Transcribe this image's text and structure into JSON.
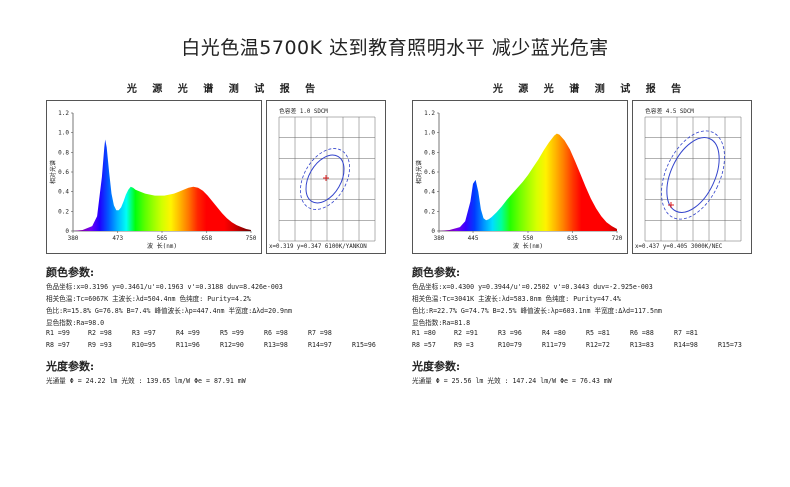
{
  "headline": "白光色温5700K  达到教育照明水平  减少蓝光危害",
  "reports": [
    {
      "title": "光 源 光 谱 测 试 报 告",
      "ylabel": "相对光谱",
      "xlabel": "波 长(nm)",
      "y_ticks": [
        "1.2",
        "1.0",
        "0.8",
        "0.6",
        "0.4",
        "0.2",
        "0"
      ],
      "x_ticks": [
        "380",
        "473",
        "565",
        "658",
        "750"
      ],
      "cie_header": "色容差    1.0 SDCM",
      "cie_footer": "x=0.319 y=0.347 6100K/YANKON",
      "color_title": "颜色参数:",
      "color_lines": [
        "色品坐标:x=0.3196  y=0.3461/u'=0.1963  v'=0.3188   duv=8.426e-003",
        "相关色温:Tc=6067K  主波长:λd=504.4nm  色纯度: Purity=4.2%",
        "色比:R=15.8% G=76.8% B=7.4%  峰值波长:λp=447.4nm  半宽度:Δλd=20.9nm",
        "显色指数:Ra=98.0"
      ],
      "ri_row1": [
        "R1 =99",
        "R2 =98",
        "R3 =97",
        "R4 =99",
        "R5 =99",
        "R6 =98",
        "R7 =98"
      ],
      "ri_row2": [
        "R8 =97",
        "R9 =93",
        "R10=95",
        "R11=96",
        "R12=90",
        "R13=98",
        "R14=97",
        "R15=96"
      ],
      "photo_title": "光度参数:",
      "photo_line": "光通量   Φ  = 24.22 lm   光效 : 139.65 lm/W  Φe   = 87.91 mW"
    },
    {
      "title": "光 源 光 谱 测 试 报 告",
      "ylabel": "相对光谱",
      "xlabel": "波 长(nm)",
      "y_ticks": [
        "1.2",
        "1.0",
        "0.8",
        "0.6",
        "0.4",
        "0.2",
        "0"
      ],
      "x_ticks": [
        "380",
        "445",
        "550",
        "635",
        "720"
      ],
      "cie_header": "色容差    4.5 SDCM",
      "cie_footer": "x=0.437 y=0.405 3000K/NEC",
      "color_title": "颜色参数:",
      "color_lines": [
        "色品坐标:x=0.4300  y=0.3944/u'=0.2502  v'=0.3443   duv=-2.925e-003",
        "相关色温:Tc=3041K  主波长:λd=583.8nm  色纯度: Purity=47.4%",
        "色比:R=22.7% G=74.7% B=2.5%  峰值波长:λp=603.1nm  半宽度:Δλd=117.5nm",
        "显色指数:Ra=81.8"
      ],
      "ri_row1": [
        "R1 =80",
        "R2 =91",
        "R3 =96",
        "R4 =80",
        "R5 =81",
        "R6 =88",
        "R7 =81"
      ],
      "ri_row2": [
        "R8 =57",
        "R9 =3",
        "R10=79",
        "R11=79",
        "R12=72",
        "R13=83",
        "R14=98",
        "R15=73"
      ],
      "photo_title": "光度参数:",
      "photo_line": "光通量   Φ  = 25.56 lm   光效 : 147.24 lm/W  Φe   = 76.43 mW"
    }
  ],
  "chart_data": [
    {
      "type": "area",
      "title": "光 源 光 谱 测 试 报 告",
      "xlabel": "波 长(nm)",
      "ylabel": "相对光谱",
      "xlim": [
        380,
        750
      ],
      "ylim": [
        0,
        1.2
      ],
      "x": [
        380,
        400,
        420,
        430,
        440,
        445,
        447,
        450,
        455,
        460,
        465,
        470,
        475,
        480,
        485,
        490,
        495,
        500,
        505,
        510,
        520,
        530,
        540,
        550,
        560,
        570,
        580,
        590,
        600,
        610,
        620,
        630,
        640,
        650,
        660,
        670,
        680,
        690,
        700,
        710,
        720,
        730,
        740,
        750
      ],
      "y": [
        0.0,
        0.01,
        0.05,
        0.15,
        0.55,
        0.85,
        0.93,
        0.85,
        0.6,
        0.38,
        0.26,
        0.21,
        0.21,
        0.24,
        0.3,
        0.37,
        0.42,
        0.45,
        0.44,
        0.42,
        0.4,
        0.38,
        0.37,
        0.36,
        0.36,
        0.36,
        0.37,
        0.38,
        0.4,
        0.42,
        0.44,
        0.45,
        0.44,
        0.41,
        0.36,
        0.3,
        0.24,
        0.18,
        0.13,
        0.09,
        0.06,
        0.04,
        0.02,
        0.01
      ]
    },
    {
      "type": "area",
      "title": "光 源 光 谱 测 试 报 告",
      "xlabel": "波 长(nm)",
      "ylabel": "相对光谱",
      "xlim": [
        380,
        720
      ],
      "ylim": [
        0,
        1.2
      ],
      "x": [
        380,
        400,
        420,
        430,
        440,
        445,
        450,
        455,
        460,
        465,
        470,
        475,
        480,
        490,
        500,
        510,
        520,
        530,
        540,
        550,
        560,
        570,
        580,
        590,
        600,
        605,
        610,
        620,
        630,
        640,
        650,
        660,
        670,
        680,
        690,
        700,
        710,
        720
      ],
      "y": [
        0.0,
        0.01,
        0.04,
        0.1,
        0.3,
        0.48,
        0.52,
        0.4,
        0.22,
        0.13,
        0.11,
        0.12,
        0.14,
        0.19,
        0.25,
        0.32,
        0.38,
        0.44,
        0.5,
        0.57,
        0.65,
        0.73,
        0.82,
        0.9,
        0.97,
        0.99,
        0.98,
        0.92,
        0.83,
        0.71,
        0.58,
        0.45,
        0.33,
        0.23,
        0.15,
        0.09,
        0.05,
        0.02
      ]
    }
  ],
  "colors": {
    "axis": "#555555",
    "grid": "#666666",
    "ellipse": "#3344cc",
    "marker": "#dd2222"
  }
}
